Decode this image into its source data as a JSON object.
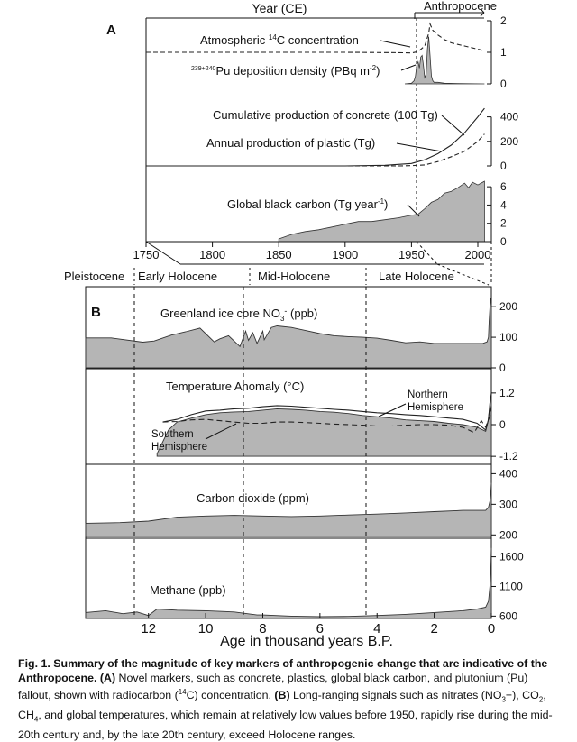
{
  "panel_a_label": "A",
  "panel_b_label": "B",
  "top_axis_title": "Year (CE)",
  "anthropocene_label": "Anthropocene",
  "bottom_axis_title": "Age in thousand years B.P.",
  "epochs": [
    "Pleistocene",
    "Early Holocene",
    "Mid-Holocene",
    "Late Holocene"
  ],
  "caption": {
    "bold": "Fig. 1. Summary of the magnitude of key markers of anthropogenic change that are indicative of the Anthropocene.",
    "a_label": "(A)",
    "a_text": " Novel markers, such as concrete, plastics, global black carbon, and plutonium (Pu) fallout, shown with radiocarbon (",
    "c14_sup": "14",
    "a_text2": "C) concentration. ",
    "b_label": "(B)",
    "b_text": " Long-ranging signals such as nitrates (NO",
    "no3_sub": "3",
    "b_text2": "−), CO",
    "co2_sub": "2",
    "b_text3": ", CH",
    "ch4_sub": "4",
    "b_text4": ", and global temperatures, which remain at relatively low values before 1950, rapidly rise during the mid-20th century and, by the late 20th century, exceed Holocene ranges."
  },
  "chart_data": [
    {
      "id": "panelA",
      "type": "area",
      "x_axis": {
        "label": "Year (CE)",
        "range": [
          1750,
          2000
        ],
        "ticks": [
          1750,
          1800,
          1850,
          1900,
          1950,
          2000
        ]
      },
      "marker_year": 1950,
      "series": [
        {
          "name": "Atmospheric 14C concentration",
          "type": "line",
          "dashed": true,
          "axis_ticks": [
            0,
            1,
            2
          ],
          "range": [
            0,
            2
          ],
          "x": [
            1750,
            1850,
            1900,
            1940,
            1950,
            1955,
            1960,
            1963,
            1964,
            1966,
            1970,
            1975,
            1980,
            1990,
            2000,
            2005
          ],
          "y": [
            1.0,
            1.0,
            1.0,
            0.99,
            0.98,
            1.02,
            1.2,
            1.6,
            1.9,
            1.7,
            1.55,
            1.4,
            1.3,
            1.2,
            1.1,
            1.05
          ]
        },
        {
          "name": "239+240Pu deposition density (PBq m-2)",
          "type": "area",
          "x": [
            1945,
            1950,
            1952,
            1953,
            1954,
            1955,
            1956,
            1957,
            1958,
            1959,
            1960,
            1961,
            1962,
            1963,
            1964,
            1965,
            1966,
            1967,
            1970,
            1975,
            1985,
            2005
          ],
          "y": [
            0,
            0.02,
            0.1,
            0.25,
            0.6,
            0.7,
            0.5,
            0.85,
            0.9,
            0.6,
            0.2,
            0.3,
            1.1,
            1.5,
            0.9,
            0.25,
            0.1,
            0.05,
            0.05,
            0.02,
            0.01,
            0
          ]
        },
        {
          "name": "Cumulative production of concrete (100 Tg)",
          "type": "line",
          "axis_ticks": [
            0,
            200,
            400
          ],
          "range": [
            0,
            500
          ],
          "x": [
            1750,
            1900,
            1930,
            1950,
            1960,
            1970,
            1980,
            1990,
            2000,
            2005
          ],
          "y": [
            0,
            0,
            5,
            20,
            50,
            100,
            170,
            270,
            400,
            470
          ]
        },
        {
          "name": "Annual production of plastic (Tg)",
          "type": "line",
          "dashed": true,
          "x": [
            1750,
            1940,
            1950,
            1960,
            1970,
            1980,
            1990,
            2000,
            2005
          ],
          "y": [
            0,
            0,
            2,
            8,
            35,
            75,
            120,
            200,
            260
          ]
        },
        {
          "name": "Global black carbon (Tg year-1)",
          "type": "area",
          "axis_ticks": [
            0,
            2,
            4,
            6
          ],
          "range": [
            0,
            7
          ],
          "x": [
            1850,
            1860,
            1870,
            1880,
            1890,
            1900,
            1910,
            1920,
            1930,
            1940,
            1950,
            1955,
            1960,
            1965,
            1970,
            1975,
            1980,
            1985,
            1990,
            1993,
            1996,
            2000,
            2005
          ],
          "y": [
            0.3,
            0.8,
            1.1,
            1.3,
            1.6,
            1.9,
            2.2,
            2.2,
            2.4,
            2.6,
            2.9,
            3.0,
            3.6,
            4.3,
            4.6,
            5.3,
            5.5,
            5.9,
            6.4,
            5.9,
            6.5,
            6.2,
            6.6
          ]
        }
      ]
    },
    {
      "id": "panelB",
      "type": "area",
      "x_axis": {
        "label": "Age in thousand years B.P.",
        "range": [
          14.2,
          0
        ],
        "ticks": [
          12,
          10,
          8,
          6,
          4,
          2,
          0
        ]
      },
      "epoch_boundaries_kyr": [
        11.7,
        8.2,
        4.2
      ],
      "series": [
        {
          "name": "Greenland ice core NO3- (ppb)",
          "type": "area",
          "axis_ticks": [
            0,
            100,
            200
          ],
          "range": [
            0,
            230
          ],
          "x": [
            14.2,
            13.3,
            12.2,
            11.8,
            11.2,
            10.7,
            10.2,
            9.7,
            9.5,
            9.2,
            8.8,
            8.6,
            8.5,
            8.35,
            8.2,
            8.0,
            7.95,
            7.7,
            7.5,
            7.0,
            6.5,
            6.0,
            5.5,
            5.0,
            4.5,
            4.0,
            3.5,
            3.0,
            2.5,
            2.0,
            1.0,
            0.3,
            0.15,
            0.1,
            0.08,
            0.05,
            0.03,
            0.01,
            0
          ],
          "y": [
            98,
            98,
            84,
            88,
            107,
            118,
            130,
            85,
            95,
            105,
            70,
            120,
            90,
            115,
            80,
            120,
            92,
            132,
            137,
            132,
            122,
            112,
            105,
            102,
            100,
            97,
            90,
            82,
            85,
            80,
            80,
            80,
            85,
            100,
            150,
            195,
            230,
            210,
            200
          ]
        },
        {
          "name": "Temperature Anomaly (°C)",
          "type": "area",
          "axis_ticks": [
            -1.2,
            0,
            1.2
          ],
          "range": [
            -1.4,
            1.4
          ],
          "x": [
            11.7,
            11.3,
            11.0,
            10.5,
            10.0,
            9.5,
            9.0,
            8.5,
            8.0,
            7.5,
            7.0,
            6.5,
            6.0,
            5.5,
            5.0,
            4.5,
            4.0,
            3.5,
            3.0,
            2.5,
            2.0,
            1.5,
            1.0,
            0.5,
            0.2,
            0.12,
            0.05,
            0.02,
            0
          ],
          "y": [
            -1.1,
            -0.2,
            0.1,
            0.25,
            0.38,
            0.45,
            0.48,
            0.5,
            0.55,
            0.6,
            0.58,
            0.55,
            0.5,
            0.47,
            0.42,
            0.35,
            0.3,
            0.25,
            0.18,
            0.15,
            0.12,
            0.05,
            0.0,
            -0.1,
            -0.25,
            0.1,
            0.7,
            1.05,
            1.15
          ]
        },
        {
          "name": "Northern Hemisphere",
          "type": "line",
          "x": [
            11.5,
            11.0,
            10.5,
            10.0,
            9.5,
            9.0,
            8.5,
            8.0,
            7.5,
            7.0,
            6.5,
            6.0,
            5.5,
            5.0,
            4.5,
            4.0,
            3.5,
            3.0,
            2.5,
            2.0,
            1.5,
            1.0,
            0.5,
            0.2,
            0.1,
            0.05,
            0.01,
            0
          ],
          "y": [
            0.1,
            0.2,
            0.38,
            0.52,
            0.55,
            0.6,
            0.62,
            0.68,
            0.72,
            0.7,
            0.66,
            0.62,
            0.58,
            0.55,
            0.5,
            0.45,
            0.42,
            0.38,
            0.35,
            0.3,
            0.25,
            0.2,
            0.05,
            -0.2,
            0.2,
            0.8,
            1.1,
            1.2
          ]
        },
        {
          "name": "Southern Hemisphere",
          "type": "line",
          "dashed": true,
          "x": [
            11.5,
            11.0,
            10.5,
            10.0,
            9.5,
            9.0,
            8.5,
            8.0,
            7.5,
            7.0,
            6.5,
            6.0,
            5.5,
            5.0,
            4.5,
            4.0,
            3.5,
            3.0,
            2.5,
            2.0,
            1.5,
            1.0,
            0.6,
            0.35,
            0.2,
            0.12,
            0.05,
            0.02,
            0
          ],
          "y": [
            0.1,
            0.12,
            0.18,
            0.2,
            0.15,
            0.1,
            0.05,
            0.05,
            0.1,
            0.1,
            0.08,
            0.05,
            0.02,
            0.0,
            -0.02,
            -0.05,
            -0.05,
            -0.02,
            0.0,
            0.0,
            -0.02,
            -0.1,
            -0.3,
            0.15,
            -0.1,
            0.15,
            0.3,
            0.55,
            0.7
          ]
        },
        {
          "name": "Carbon dioxide (ppm)",
          "type": "area",
          "axis_ticks": [
            200,
            300,
            400
          ],
          "range": [
            195,
            410
          ],
          "x": [
            14.2,
            13.0,
            12.0,
            11.0,
            10.0,
            9.0,
            8.0,
            7.0,
            6.0,
            5.0,
            4.0,
            3.0,
            2.0,
            1.0,
            0.5,
            0.2,
            0.1,
            0.05,
            0.02,
            0
          ],
          "y": [
            238,
            240,
            245,
            258,
            262,
            264,
            262,
            260,
            262,
            265,
            268,
            272,
            276,
            280,
            280,
            280,
            290,
            310,
            340,
            370
          ]
        },
        {
          "name": "Methane (ppb)",
          "type": "area",
          "axis_ticks": [
            600,
            1100,
            1600
          ],
          "range": [
            560,
            1700
          ],
          "x": [
            14.2,
            13.5,
            12.9,
            12.4,
            12.0,
            11.7,
            11.0,
            10.0,
            9.0,
            8.2,
            8.0,
            7.0,
            6.0,
            5.0,
            4.0,
            3.0,
            2.0,
            1.0,
            0.5,
            0.2,
            0.1,
            0.05,
            0.02,
            0
          ],
          "y": [
            660,
            690,
            640,
            670,
            610,
            720,
            700,
            690,
            670,
            620,
            620,
            600,
            590,
            595,
            610,
            630,
            660,
            690,
            720,
            750,
            850,
            1100,
            1400,
            1750
          ]
        }
      ]
    }
  ]
}
